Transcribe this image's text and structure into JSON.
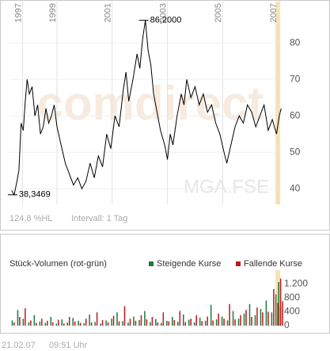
{
  "chart_data": [
    {
      "type": "line",
      "x": [
        1997.36,
        1997.45,
        1997.55,
        1997.62,
        1997.7,
        1997.78,
        1997.85,
        1997.92,
        1998.0,
        1998.1,
        1998.2,
        1998.3,
        1998.4,
        1998.5,
        1998.6,
        1998.7,
        1998.8,
        1998.9,
        1999.0,
        1999.15,
        1999.3,
        1999.45,
        1999.6,
        1999.75,
        1999.9,
        2000.05,
        2000.2,
        2000.35,
        2000.5,
        2000.65,
        2000.8,
        2000.95,
        2001.1,
        2001.25,
        2001.4,
        2001.5,
        2001.6,
        2001.75,
        2001.9,
        2002.0,
        2002.1,
        2002.2,
        2002.3,
        2002.4,
        2002.5,
        2002.6,
        2002.75,
        2002.9,
        2003.0,
        2003.1,
        2003.2,
        2003.35,
        2003.5,
        2003.6,
        2003.7,
        2003.85,
        2004.0,
        2004.15,
        2004.3,
        2004.45,
        2004.6,
        2004.75,
        2004.9,
        2005.05,
        2005.15,
        2005.3,
        2005.45,
        2005.6,
        2005.75,
        2005.9,
        2006.05,
        2006.2,
        2006.35,
        2006.5,
        2006.65,
        2006.8,
        2006.95,
        2007.05,
        2007.12
      ],
      "values": [
        39.5,
        38.35,
        42,
        45,
        58,
        56,
        64,
        70,
        66,
        68,
        60,
        63,
        55,
        57,
        62,
        58,
        60,
        63,
        57,
        52,
        47,
        44,
        41,
        43,
        40,
        42,
        47,
        43,
        49,
        46,
        55,
        51,
        60,
        57,
        67,
        72,
        64,
        70,
        77,
        73,
        81,
        86.2,
        78,
        74,
        66,
        62,
        56,
        52,
        48,
        55,
        52,
        60,
        66,
        63,
        70,
        65,
        68,
        63,
        66,
        61,
        63,
        58,
        55,
        50,
        47,
        52,
        57,
        60,
        58,
        63,
        61,
        57,
        60,
        63,
        56,
        59,
        55,
        60,
        62
      ],
      "color": "#000000",
      "xlim": [
        1997.28,
        2007.14
      ],
      "xticks": [
        {
          "value": 1997.75,
          "label": "1997"
        },
        1999,
        2001,
        2003,
        2005,
        2007
      ],
      "ylim": [
        35.7,
        89.6
      ],
      "yticks": [
        40,
        50,
        60,
        70,
        80
      ],
      "grid": true,
      "annotations": [
        {
          "text": "86,2000",
          "x": 2002.2,
          "y": 86.2
        },
        {
          "text": "38,3469",
          "x": 1997.45,
          "y": 38.35
        }
      ],
      "watermark": "comdirect",
      "symbol": "MGA.FSE",
      "range_label": "124,8 %HL",
      "interval": "Intervall: 1 Tag"
    },
    {
      "type": "bar",
      "title": "Stück-Volumen (rot-grün)",
      "x": [
        1997.4,
        1997.6,
        1997.8,
        1998.0,
        1998.2,
        1998.4,
        1998.6,
        1998.8,
        1999.0,
        1999.2,
        1999.4,
        1999.6,
        1999.8,
        2000.0,
        2000.2,
        2000.4,
        2000.6,
        2000.8,
        2001.0,
        2001.2,
        2001.4,
        2001.6,
        2001.8,
        2002.0,
        2002.2,
        2002.4,
        2002.6,
        2002.8,
        2003.0,
        2003.2,
        2003.4,
        2003.6,
        2003.8,
        2004.0,
        2004.2,
        2004.4,
        2004.6,
        2004.8,
        2005.0,
        2005.2,
        2005.4,
        2005.6,
        2005.8,
        2006.0,
        2006.2,
        2006.4,
        2006.6,
        2006.8,
        2006.95,
        2007.05,
        2007.12
      ],
      "series": [
        {
          "name": "Steigende Kurse",
          "color": "#1a7a3a",
          "values": [
            150,
            450,
            200,
            100,
            300,
            120,
            80,
            250,
            60,
            180,
            90,
            220,
            140,
            70,
            320,
            110,
            60,
            150,
            200,
            380,
            130,
            90,
            260,
            160,
            420,
            100,
            190,
            80,
            140,
            250,
            110,
            320,
            170,
            90,
            230,
            140,
            600,
            180,
            260,
            150,
            420,
            200,
            350,
            620,
            300,
            480,
            720,
            380,
            900,
            1250,
            560
          ]
        },
        {
          "name": "Fallende Kurse",
          "color": "#c0161c",
          "values": [
            90,
            250,
            500,
            150,
            80,
            200,
            140,
            100,
            170,
            60,
            250,
            120,
            80,
            200,
            90,
            380,
            160,
            100,
            280,
            120,
            560,
            200,
            140,
            300,
            180,
            250,
            90,
            380,
            120,
            160,
            420,
            100,
            200,
            300,
            130,
            260,
            150,
            350,
            200,
            620,
            180,
            300,
            450,
            250,
            520,
            380,
            400,
            1050,
            650,
            1350,
            700
          ]
        }
      ],
      "xlim": [
        1997.28,
        2007.14
      ],
      "xticks": [
        2007
      ],
      "ylim": [
        0,
        1500
      ],
      "yticks": [
        0,
        400,
        800,
        {
          "value": 1200,
          "label": "1.200"
        }
      ]
    }
  ],
  "timestamp": {
    "date": "21.02.07",
    "time": "09:51 Uhr"
  }
}
